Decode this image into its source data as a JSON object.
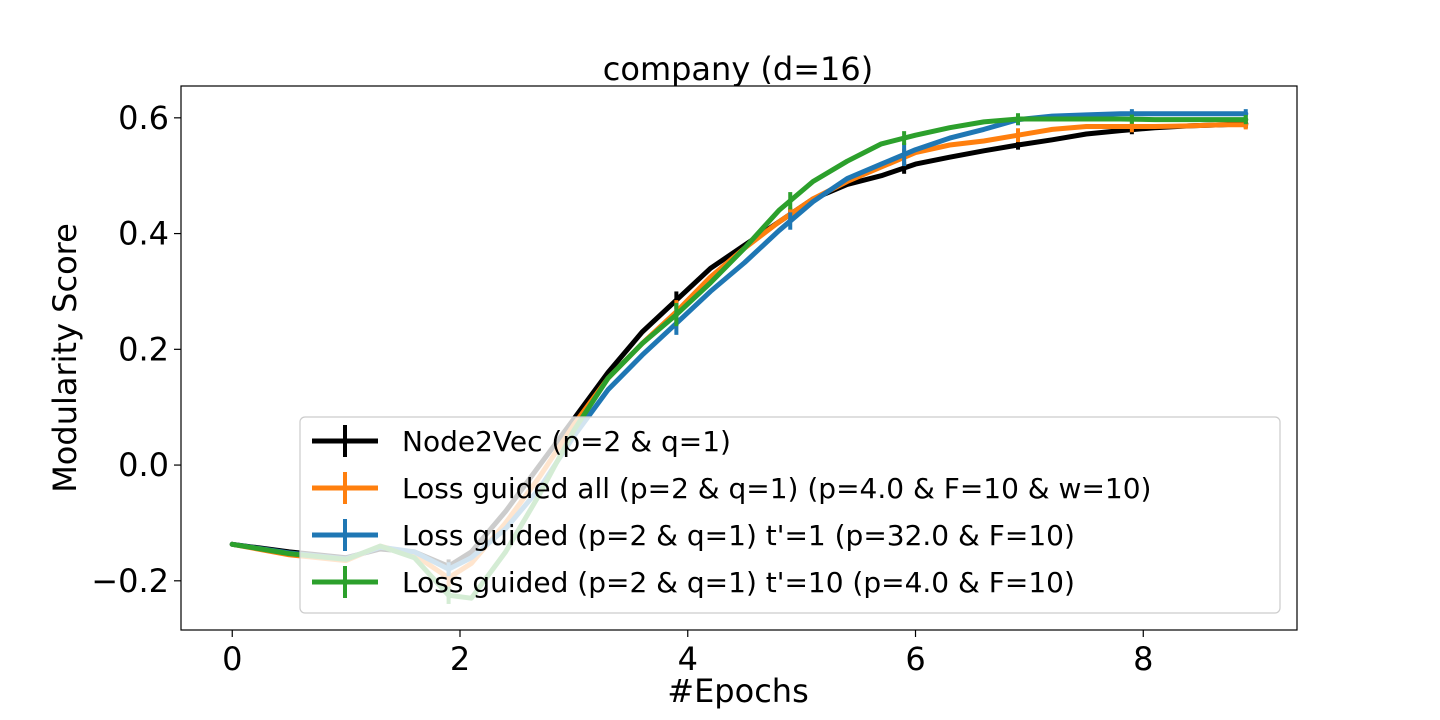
{
  "chart_data": {
    "type": "line",
    "title": "company (d=16)",
    "xlabel": "#Epochs",
    "ylabel": "Modularity Score",
    "xlim": [
      -0.45,
      9.35
    ],
    "ylim": [
      -0.285,
      0.655
    ],
    "xticks": [
      0,
      2,
      4,
      6,
      8
    ],
    "xtick_labels": [
      "0",
      "2",
      "4",
      "6",
      "8"
    ],
    "yticks": [
      -0.2,
      0.0,
      0.2,
      0.4,
      0.6
    ],
    "ytick_labels": [
      "−0.2",
      "0.0",
      "0.2",
      "0.4",
      "0.6"
    ],
    "grid": false,
    "legend_position": "lower-right",
    "series": [
      {
        "name": "Node2Vec (p=2 & q=1)",
        "color": "#000000",
        "x": [
          0,
          0.5,
          1.0,
          1.3,
          1.6,
          1.9,
          2.1,
          2.4,
          2.7,
          3.0,
          3.3,
          3.6,
          3.9,
          4.2,
          4.5,
          4.8,
          5.1,
          5.4,
          5.7,
          6.0,
          6.3,
          6.6,
          6.9,
          7.2,
          7.5,
          7.8,
          8.1,
          8.4,
          8.7,
          8.9
        ],
        "y": [
          -0.137,
          -0.15,
          -0.16,
          -0.145,
          -0.15,
          -0.175,
          -0.15,
          -0.08,
          0.0,
          0.08,
          0.16,
          0.23,
          0.285,
          0.34,
          0.38,
          0.42,
          0.46,
          0.485,
          0.5,
          0.52,
          0.532,
          0.543,
          0.553,
          0.562,
          0.572,
          0.578,
          0.583,
          0.586,
          0.588,
          0.59
        ],
        "err_x": [
          1.9,
          3.9,
          4.9,
          5.9,
          6.9,
          7.9,
          8.9
        ],
        "err_y": [
          0.012,
          0.015,
          0.01,
          0.01,
          0.008,
          0.008,
          0.008
        ]
      },
      {
        "name": "Loss guided all (p=2 & q=1)  (p=4.0 & F=10 & w=10)",
        "color": "#ff7f0e",
        "x": [
          0,
          0.5,
          1.0,
          1.3,
          1.6,
          1.9,
          2.1,
          2.4,
          2.7,
          3.0,
          3.3,
          3.6,
          3.9,
          4.2,
          4.5,
          4.8,
          5.1,
          5.4,
          5.7,
          6.0,
          6.3,
          6.6,
          6.9,
          7.2,
          7.5,
          7.8,
          8.1,
          8.4,
          8.7,
          8.9
        ],
        "y": [
          -0.137,
          -0.155,
          -0.165,
          -0.14,
          -0.155,
          -0.195,
          -0.17,
          -0.1,
          -0.02,
          0.07,
          0.15,
          0.21,
          0.265,
          0.325,
          0.375,
          0.42,
          0.46,
          0.49,
          0.515,
          0.54,
          0.553,
          0.56,
          0.57,
          0.58,
          0.585,
          0.585,
          0.585,
          0.586,
          0.588,
          0.588
        ],
        "err_x": [
          1.9,
          3.9,
          4.9,
          5.9,
          6.9,
          7.9,
          8.9
        ],
        "err_y": [
          0.015,
          0.02,
          0.012,
          0.015,
          0.012,
          0.01,
          0.008
        ]
      },
      {
        "name": "Loss guided  (p=2 & q=1)  t'=1  (p=32.0 & F=10)",
        "color": "#1f77b4",
        "x": [
          0,
          0.5,
          1.0,
          1.3,
          1.6,
          1.9,
          2.1,
          2.4,
          2.7,
          3.0,
          3.3,
          3.6,
          3.9,
          4.2,
          4.5,
          4.8,
          5.1,
          5.4,
          5.7,
          6.0,
          6.3,
          6.6,
          6.9,
          7.2,
          7.5,
          7.8,
          8.1,
          8.4,
          8.7,
          8.9
        ],
        "y": [
          -0.137,
          -0.152,
          -0.162,
          -0.142,
          -0.15,
          -0.18,
          -0.16,
          -0.11,
          -0.04,
          0.05,
          0.13,
          0.19,
          0.245,
          0.3,
          0.35,
          0.405,
          0.455,
          0.495,
          0.52,
          0.545,
          0.565,
          0.58,
          0.597,
          0.603,
          0.605,
          0.607,
          0.607,
          0.607,
          0.607,
          0.607
        ],
        "err_x": [
          1.9,
          3.9,
          4.9,
          5.9,
          6.9,
          7.9,
          8.9
        ],
        "err_y": [
          0.012,
          0.02,
          0.015,
          0.02,
          0.01,
          0.008,
          0.008
        ]
      },
      {
        "name": "Loss guided  (p=2 & q=1)  t'=10  (p=4.0 & F=10)",
        "color": "#2ca02c",
        "x": [
          0,
          0.5,
          1.0,
          1.3,
          1.6,
          1.9,
          2.1,
          2.4,
          2.7,
          3.0,
          3.3,
          3.6,
          3.9,
          4.2,
          4.5,
          4.8,
          5.1,
          5.4,
          5.7,
          6.0,
          6.3,
          6.6,
          6.9,
          7.2,
          7.5,
          7.8,
          8.1,
          8.4,
          8.7,
          8.9
        ],
        "y": [
          -0.137,
          -0.153,
          -0.163,
          -0.14,
          -0.16,
          -0.225,
          -0.23,
          -0.15,
          -0.05,
          0.06,
          0.15,
          0.21,
          0.26,
          0.315,
          0.375,
          0.44,
          0.49,
          0.525,
          0.555,
          0.57,
          0.583,
          0.593,
          0.598,
          0.598,
          0.598,
          0.598,
          0.597,
          0.597,
          0.597,
          0.597
        ],
        "err_x": [
          1.9,
          3.9,
          4.9,
          5.9,
          6.9,
          7.9,
          8.9
        ],
        "err_y": [
          0.015,
          0.02,
          0.015,
          0.012,
          0.01,
          0.008,
          0.008
        ]
      }
    ]
  }
}
